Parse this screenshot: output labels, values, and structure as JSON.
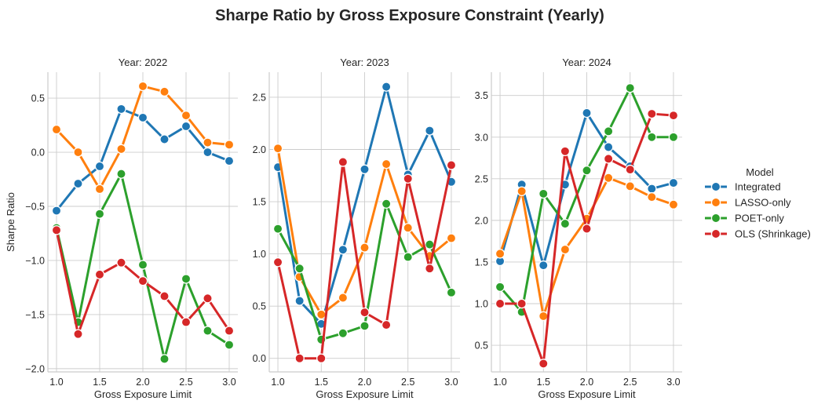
{
  "chart_data": {
    "type": "line",
    "title": "Sharpe Ratio by Gross Exposure Constraint (Yearly)",
    "xlabel": "Gross Exposure Limit",
    "ylabel": "Sharpe Ratio",
    "x": [
      1.0,
      1.25,
      1.5,
      1.75,
      2.0,
      2.25,
      2.5,
      2.75,
      3.0
    ],
    "legend": {
      "title": "Model",
      "position": "right",
      "entries": [
        "Integrated",
        "LASSO-only",
        "POET-only",
        "OLS (Shrinkage)"
      ]
    },
    "colors": {
      "Integrated": "#1f77b4",
      "LASSO-only": "#ff7f0e",
      "POET-only": "#2ca02c",
      "OLS (Shrinkage)": "#d62728"
    },
    "grid": true,
    "panels": [
      {
        "title": "Year: 2022",
        "ylim": [
          -2.03,
          0.74
        ],
        "xlim": [
          0.9,
          3.1
        ],
        "yticks": [
          -2.0,
          -1.5,
          -1.0,
          -0.5,
          0.0,
          0.5
        ],
        "ytick_labels": [
          "−2.0",
          "−1.5",
          "−1.0",
          "−0.5",
          "0.0",
          "0.5"
        ],
        "xticks": [
          1.0,
          1.5,
          2.0,
          2.5,
          3.0
        ],
        "xtick_labels": [
          "1.0",
          "1.5",
          "2.0",
          "2.5",
          "3.0"
        ],
        "series": [
          {
            "name": "Integrated",
            "values": [
              -0.54,
              -0.29,
              -0.13,
              0.4,
              0.32,
              0.12,
              0.24,
              0.0,
              -0.08
            ]
          },
          {
            "name": "LASSO-only",
            "values": [
              0.21,
              0.0,
              -0.34,
              0.03,
              0.61,
              0.56,
              0.34,
              0.09,
              0.07
            ]
          },
          {
            "name": "POET-only",
            "values": [
              -0.7,
              -1.57,
              -0.57,
              -0.2,
              -1.04,
              -1.91,
              -1.17,
              -1.65,
              -1.78
            ]
          },
          {
            "name": "OLS (Shrinkage)",
            "values": [
              -0.72,
              -1.68,
              -1.13,
              -1.02,
              -1.19,
              -1.33,
              -1.57,
              -1.35,
              -1.65
            ]
          }
        ]
      },
      {
        "title": "Year: 2023",
        "ylim": [
          -0.13,
          2.74
        ],
        "xlim": [
          0.9,
          3.1
        ],
        "yticks": [
          0.0,
          0.5,
          1.0,
          1.5,
          2.0,
          2.5
        ],
        "ytick_labels": [
          "0.0",
          "0.5",
          "1.0",
          "1.5",
          "2.0",
          "2.5"
        ],
        "xticks": [
          1.0,
          1.5,
          2.0,
          2.5,
          3.0
        ],
        "xtick_labels": [
          "1.0",
          "1.5",
          "2.0",
          "2.5",
          "3.0"
        ],
        "series": [
          {
            "name": "Integrated",
            "values": [
              1.83,
              0.55,
              0.33,
              1.04,
              1.81,
              2.6,
              1.76,
              2.18,
              1.69
            ]
          },
          {
            "name": "LASSO-only",
            "values": [
              2.01,
              0.78,
              0.42,
              0.58,
              1.06,
              1.86,
              1.25,
              0.98,
              1.15
            ]
          },
          {
            "name": "POET-only",
            "values": [
              1.24,
              0.86,
              0.18,
              0.24,
              0.31,
              1.48,
              0.97,
              1.09,
              0.63
            ]
          },
          {
            "name": "OLS (Shrinkage)",
            "values": [
              0.92,
              0.0,
              0.0,
              1.88,
              0.44,
              0.32,
              1.72,
              0.86,
              1.85
            ]
          }
        ]
      },
      {
        "title": "Year: 2024",
        "ylim": [
          0.18,
          3.78
        ],
        "xlim": [
          0.9,
          3.1
        ],
        "yticks": [
          0.5,
          1.0,
          1.5,
          2.0,
          2.5,
          3.0,
          3.5
        ],
        "ytick_labels": [
          "0.5",
          "1.0",
          "1.5",
          "2.0",
          "2.5",
          "3.0",
          "3.5"
        ],
        "xticks": [
          1.0,
          1.5,
          2.0,
          2.5,
          3.0
        ],
        "xtick_labels": [
          "1.0",
          "1.5",
          "2.0",
          "2.5",
          "3.0"
        ],
        "series": [
          {
            "name": "Integrated",
            "values": [
              1.51,
              2.43,
              1.46,
              2.43,
              3.29,
              2.88,
              2.65,
              2.38,
              2.45
            ]
          },
          {
            "name": "LASSO-only",
            "values": [
              1.6,
              2.35,
              0.85,
              1.65,
              2.02,
              2.51,
              2.41,
              2.28,
              2.19
            ]
          },
          {
            "name": "POET-only",
            "values": [
              1.2,
              0.9,
              2.32,
              1.96,
              2.6,
              3.07,
              3.59,
              3.0,
              3.0
            ]
          },
          {
            "name": "OLS (Shrinkage)",
            "values": [
              1.0,
              1.0,
              0.28,
              2.83,
              1.9,
              2.74,
              2.61,
              3.28,
              3.26
            ]
          }
        ]
      }
    ]
  }
}
